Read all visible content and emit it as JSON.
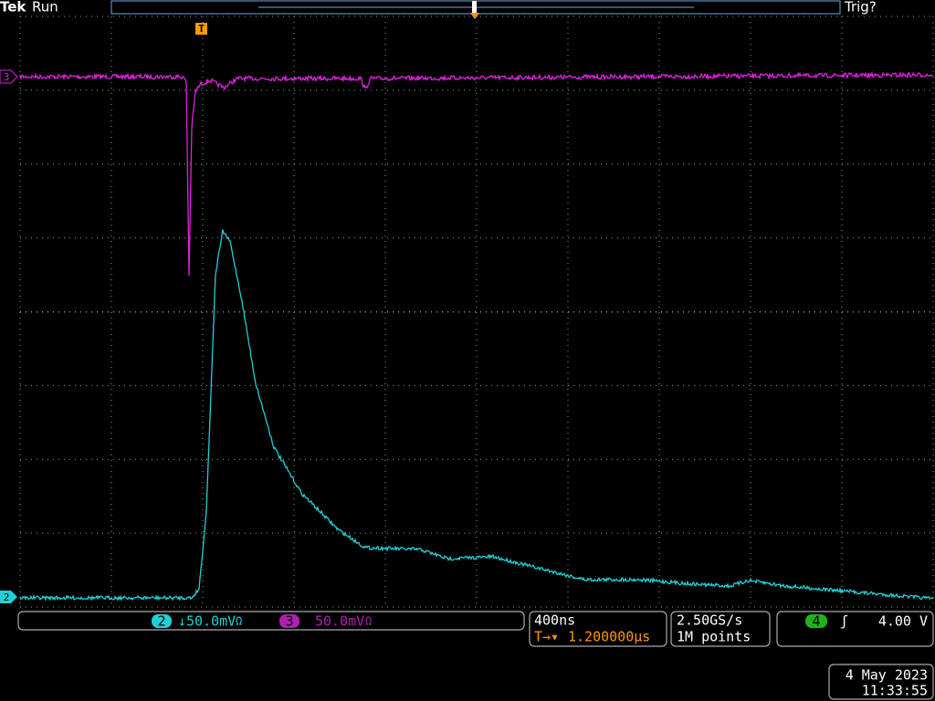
{
  "header": {
    "brand": "Tek",
    "state": "Run",
    "trigger_status": "Trig?",
    "trigger_marker": "T"
  },
  "channels": [
    {
      "number": "2",
      "scale": "↓50.0mV",
      "suffix": "Ω"
    },
    {
      "number": "3",
      "scale": "50.0mV",
      "suffix": "Ω"
    }
  ],
  "markers": {
    "ch3": "3",
    "ch2": "2"
  },
  "horizontal": {
    "time_per_div": "400ns",
    "trigger_prefix": "T→▾",
    "delay": "1.200000µs"
  },
  "acquisition": {
    "sample_rate": "2.50GS/s",
    "record_length": "1M points"
  },
  "trigger": {
    "source": "4",
    "slope": "ʃ",
    "level": "4.00 V"
  },
  "timestamp": {
    "date": "4 May 2023",
    "time": "11:33:55"
  }
}
